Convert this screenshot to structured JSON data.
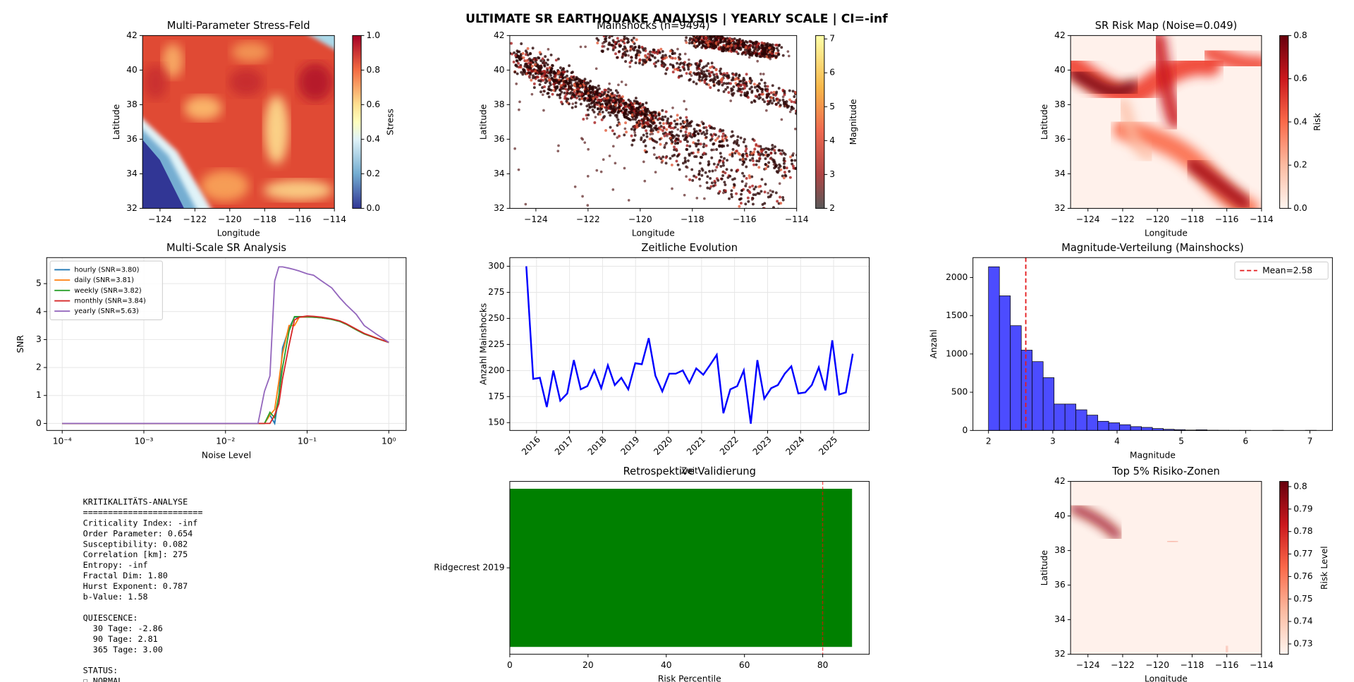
{
  "title": "ULTIMATE SR EARTHQUAKE ANALYSIS | YEARLY SCALE | CI=-inf",
  "chart_data": [
    {
      "type": "heatmap",
      "title": "Multi-Parameter Stress-Feld",
      "xlabel": "Longitude",
      "ylabel": "Latitude",
      "xlim": [
        -125,
        -114
      ],
      "xticks": [
        {
          "value": -124,
          "label": "−124"
        },
        {
          "value": -122,
          "label": "−122"
        },
        {
          "value": -120,
          "label": "−120"
        },
        {
          "value": -118,
          "label": "−118"
        },
        {
          "value": -116,
          "label": "−116"
        },
        {
          "value": -114,
          "label": "−114"
        }
      ],
      "ylim": [
        32,
        42
      ],
      "yticks": [
        32,
        34,
        36,
        38,
        40,
        42
      ],
      "colormap": "RdYlBu_r",
      "colorbar": {
        "label": "Stress",
        "lim": [
          0,
          1
        ],
        "ticks": [
          {
            "value": 0,
            "label": "0.0"
          },
          {
            "value": 0.2,
            "label": "0.2"
          },
          {
            "value": 0.4,
            "label": "0.4"
          },
          {
            "value": 0.6,
            "label": "0.6"
          },
          {
            "value": 0.8,
            "label": "0.8"
          },
          {
            "value": 1,
            "label": "1.0"
          }
        ]
      }
    },
    {
      "type": "scatter",
      "title": "Mainshocks (n=9494)",
      "xlabel": "Longitude",
      "ylabel": "Latitude",
      "xlim": [
        -125,
        -114
      ],
      "xticks": [
        {
          "value": -124,
          "label": "−124"
        },
        {
          "value": -122,
          "label": "−122"
        },
        {
          "value": -120,
          "label": "−120"
        },
        {
          "value": -118,
          "label": "−118"
        },
        {
          "value": -116,
          "label": "−116"
        },
        {
          "value": -114,
          "label": "−114"
        }
      ],
      "ylim": [
        32,
        42
      ],
      "yticks": [
        32,
        34,
        36,
        38,
        40,
        42
      ],
      "colormap": "hot",
      "colorbar": {
        "label": "Magnitude",
        "lim": [
          2,
          7.1
        ],
        "ticks": [
          2,
          3,
          4,
          5,
          6,
          7
        ]
      }
    },
    {
      "type": "heatmap",
      "title": "SR Risk Map (Noise=0.049)",
      "xlabel": "Longitude",
      "ylabel": "Latitude",
      "xlim": [
        -125,
        -114
      ],
      "xticks": [
        {
          "value": -124,
          "label": "−124"
        },
        {
          "value": -122,
          "label": "−122"
        },
        {
          "value": -120,
          "label": "−120"
        },
        {
          "value": -118,
          "label": "−118"
        },
        {
          "value": -116,
          "label": "−116"
        },
        {
          "value": -114,
          "label": "−114"
        }
      ],
      "ylim": [
        32,
        42
      ],
      "yticks": [
        32,
        34,
        36,
        38,
        40,
        42
      ],
      "colormap": "Reds",
      "colorbar": {
        "label": "Risk",
        "lim": [
          0,
          0.8
        ],
        "ticks": [
          {
            "value": 0,
            "label": "0.0"
          },
          {
            "value": 0.2,
            "label": "0.2"
          },
          {
            "value": 0.4,
            "label": "0.4"
          },
          {
            "value": 0.6,
            "label": "0.6"
          },
          {
            "value": 0.8,
            "label": "0.8"
          }
        ]
      }
    },
    {
      "type": "line",
      "title": "Multi-Scale SR Analysis",
      "xlabel": "Noise Level",
      "ylabel": "SNR",
      "xscale": "log",
      "grid": true,
      "legend": "upper left",
      "x": [
        0.0001,
        0.001,
        0.01,
        0.025,
        0.03,
        0.035,
        0.04,
        0.045,
        0.05,
        0.06,
        0.07,
        0.08,
        0.1,
        0.12,
        0.15,
        0.2,
        0.25,
        0.3,
        0.4,
        0.5,
        0.7,
        1.0
      ],
      "xlim": [
        6.45e-05,
        1.63
      ],
      "xticks": [
        {
          "value": 0.0001,
          "label": "10⁻⁴"
        },
        {
          "value": 0.001,
          "label": "10⁻³"
        },
        {
          "value": 0.01,
          "label": "10⁻²"
        },
        {
          "value": 0.1,
          "label": "10⁻¹"
        },
        {
          "value": 1,
          "label": "10⁰"
        }
      ],
      "ylim": [
        -0.25,
        5.93
      ],
      "yticks": [
        0,
        1,
        2,
        3,
        4,
        5
      ],
      "series": [
        {
          "name": "hourly (SNR=3.80)",
          "color": "#1f77b4",
          "values": [
            0,
            0,
            0,
            0,
            0,
            0.3,
            0,
            1.0,
            2.7,
            3.4,
            3.8,
            3.8,
            3.8,
            3.8,
            3.78,
            3.72,
            3.65,
            3.55,
            3.35,
            3.2,
            3.05,
            2.9
          ]
        },
        {
          "name": "daily (SNR=3.81)",
          "color": "#ff7f0e",
          "values": [
            0,
            0,
            0,
            0,
            0,
            0.3,
            0.5,
            1.5,
            2.5,
            3.5,
            3.5,
            3.8,
            3.81,
            3.8,
            3.78,
            3.72,
            3.65,
            3.55,
            3.35,
            3.2,
            3.05,
            2.9
          ]
        },
        {
          "name": "weekly (SNR=3.82)",
          "color": "#2ca02c",
          "values": [
            0,
            0,
            0,
            0,
            0,
            0.4,
            0.2,
            1.0,
            2.0,
            3.3,
            3.82,
            3.82,
            3.82,
            3.8,
            3.78,
            3.72,
            3.65,
            3.55,
            3.35,
            3.2,
            3.05,
            2.9
          ]
        },
        {
          "name": "monthly (SNR=3.84)",
          "color": "#d62728",
          "values": [
            0,
            0,
            0,
            0,
            0,
            0,
            0.3,
            0.7,
            1.6,
            2.8,
            3.7,
            3.8,
            3.84,
            3.83,
            3.8,
            3.74,
            3.67,
            3.57,
            3.37,
            3.22,
            3.06,
            2.9
          ]
        },
        {
          "name": "yearly (SNR=5.63)",
          "color": "#9467bd",
          "values": [
            0,
            0,
            0,
            0,
            1.15,
            1.7,
            5.1,
            5.6,
            5.6,
            5.55,
            5.5,
            5.45,
            5.35,
            5.3,
            5.1,
            4.85,
            4.5,
            4.25,
            3.9,
            3.5,
            3.2,
            2.9
          ]
        }
      ]
    },
    {
      "type": "line",
      "title": "Zeitliche Evolution",
      "xlabel": "Zeit",
      "ylabel": "Anzahl Mainshocks",
      "grid": true,
      "xrotate": true,
      "x": [
        2015.69,
        2015.9,
        2016.1,
        2016.31,
        2016.51,
        2016.72,
        2016.93,
        2017.13,
        2017.34,
        2017.54,
        2017.75,
        2017.96,
        2018.16,
        2018.37,
        2018.57,
        2018.78,
        2018.99,
        2019.19,
        2019.4,
        2019.6,
        2019.81,
        2020.02,
        2020.22,
        2020.43,
        2020.63,
        2020.84,
        2021.05,
        2021.25,
        2021.46,
        2021.66,
        2021.87,
        2022.08,
        2022.28,
        2022.49,
        2022.69,
        2022.9,
        2023.11,
        2023.31,
        2023.52,
        2023.72,
        2023.93,
        2024.14,
        2024.34,
        2024.55,
        2024.75,
        2024.96,
        2025.17,
        2025.37,
        2025.58
      ],
      "xlim": [
        2015.19,
        2026.08
      ],
      "xticks": [
        2016,
        2017,
        2018,
        2019,
        2020,
        2021,
        2022,
        2023,
        2024,
        2025
      ],
      "ylim": [
        142.5,
        308.3
      ],
      "yticks": [
        150,
        175,
        200,
        225,
        250,
        275,
        300
      ],
      "series": [
        {
          "color": "#0000ff",
          "values": [
            300,
            192,
            193,
            165,
            200,
            171,
            178,
            210,
            182,
            185,
            200,
            183,
            205,
            186,
            193,
            182,
            207,
            206,
            231,
            195,
            180,
            197,
            197,
            200,
            188,
            202,
            196,
            205,
            215,
            159,
            182,
            185,
            200,
            149,
            210,
            173,
            183,
            186,
            197,
            204,
            178,
            179,
            186,
            203,
            181,
            229,
            177,
            179,
            216
          ]
        }
      ]
    },
    {
      "type": "histogram",
      "title": "Magnitude-Verteilung (Mainshocks)",
      "xlabel": "Magnitude",
      "ylabel": "Anzahl",
      "color": "#4c4cff",
      "legend": "upper right",
      "bins": [
        2.0,
        2.17,
        2.34,
        2.51,
        2.68,
        2.85,
        3.02,
        3.19,
        3.36,
        3.53,
        3.7,
        3.87,
        4.04,
        4.21,
        4.38,
        4.55,
        4.72,
        4.89,
        5.06,
        5.23,
        5.4,
        5.57,
        5.74,
        5.91,
        6.08,
        6.25,
        6.42,
        6.59,
        6.76,
        6.93,
        7.1
      ],
      "counts": [
        2140,
        1760,
        1370,
        1050,
        900,
        690,
        345,
        345,
        270,
        200,
        120,
        100,
        75,
        50,
        40,
        25,
        15,
        10,
        5,
        8,
        3,
        2,
        1,
        1,
        0,
        0,
        1,
        0,
        0,
        1
      ],
      "mean": {
        "value": 2.58,
        "label": "Mean=2.58",
        "color": "#e41a1c"
      },
      "xlim": [
        1.758,
        7.35
      ],
      "xticks": [
        2,
        3,
        4,
        5,
        6,
        7
      ],
      "ylim": [
        0,
        2260
      ],
      "yticks": [
        0,
        500,
        1000,
        1500,
        2000
      ]
    },
    {
      "type": "text",
      "sections": [
        [
          "KRITIKALITÄTS-ANALYSE",
          "========================",
          "Criticality Index: -inf",
          "Order Parameter: 0.654",
          "Susceptibility: 0.082",
          "Correlation [km]: 275",
          "Entropy: -inf",
          "Fractal Dim: 1.80",
          "Hurst Exponent: 0.787",
          "b-Value: 1.58"
        ],
        [
          "QUIESCENCE:",
          "  30 Tage: -2.86",
          "  90 Tage: 2.81",
          "  365 Tage: 3.00"
        ],
        [
          "STATUS:",
          "☐ NORMAL"
        ]
      ]
    },
    {
      "type": "barh",
      "title": "Retrospektive Validierung",
      "xlabel": "Risk Percentile",
      "categories": [
        "Ridgecrest 2019"
      ],
      "values": [
        87.5
      ],
      "color": "#008000",
      "threshold": {
        "value": 80,
        "color": "#ff0000"
      },
      "xlim": [
        0,
        91.9
      ],
      "xticks": [
        0,
        20,
        40,
        60,
        80
      ]
    },
    {
      "type": "heatmap",
      "title": "Top 5% Risiko-Zonen",
      "xlabel": "Longitude",
      "ylabel": "Latitude",
      "xlim": [
        -125,
        -114
      ],
      "xticks": [
        {
          "value": -124,
          "label": "−124"
        },
        {
          "value": -122,
          "label": "−122"
        },
        {
          "value": -120,
          "label": "−120"
        },
        {
          "value": -118,
          "label": "−118"
        },
        {
          "value": -116,
          "label": "−116"
        },
        {
          "value": -114,
          "label": "−114"
        }
      ],
      "ylim": [
        32,
        42
      ],
      "yticks": [
        32,
        34,
        36,
        38,
        40,
        42
      ],
      "colormap": "Reds",
      "colorbar": {
        "label": "Risk Level",
        "lim": [
          0.7254,
          0.8023
        ],
        "ticks": [
          0.73,
          0.74,
          0.75,
          0.76,
          0.77,
          0.78,
          0.79,
          0.8
        ]
      }
    }
  ]
}
